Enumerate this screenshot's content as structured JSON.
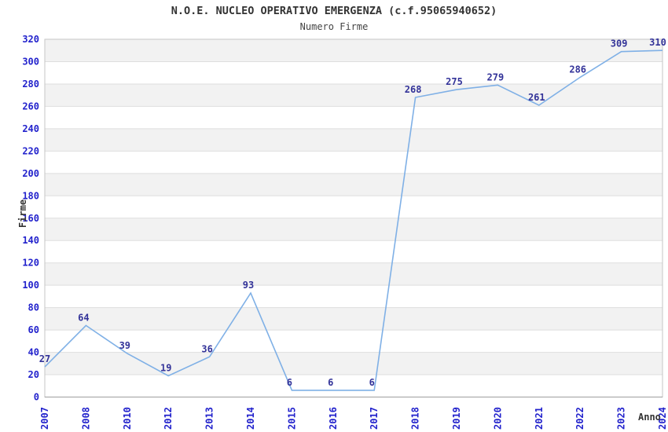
{
  "chart_data": {
    "type": "line",
    "title": "N.O.E. NUCLEO OPERATIVO EMERGENZA (c.f.95065940652)",
    "subtitle": "Numero Firme",
    "xlabel": "Anno",
    "ylabel": "Firme",
    "categories": [
      "2007",
      "2008",
      "2010",
      "2012",
      "2013",
      "2014",
      "2015",
      "2016",
      "2017",
      "2018",
      "2019",
      "2020",
      "2021",
      "2022",
      "2023",
      "2024"
    ],
    "values": [
      27,
      64,
      39,
      19,
      36,
      93,
      6,
      6,
      6,
      268,
      275,
      279,
      261,
      286,
      309,
      310
    ],
    "ylim": [
      0,
      320
    ],
    "ytick_step": 20,
    "grid": "horizontal-gridlines-with-alternating-bands",
    "legend": "none",
    "data_labels_visible": true,
    "colors": {
      "line": "#7fb0e6",
      "tick_label": "#2222cc",
      "data_label": "#333399",
      "band_fill": "#f2f2f2",
      "gridline": "#dedede",
      "plot_border": "#c6c6c6",
      "axis_line": "#9e9e9e",
      "title_text": "#333333"
    }
  }
}
